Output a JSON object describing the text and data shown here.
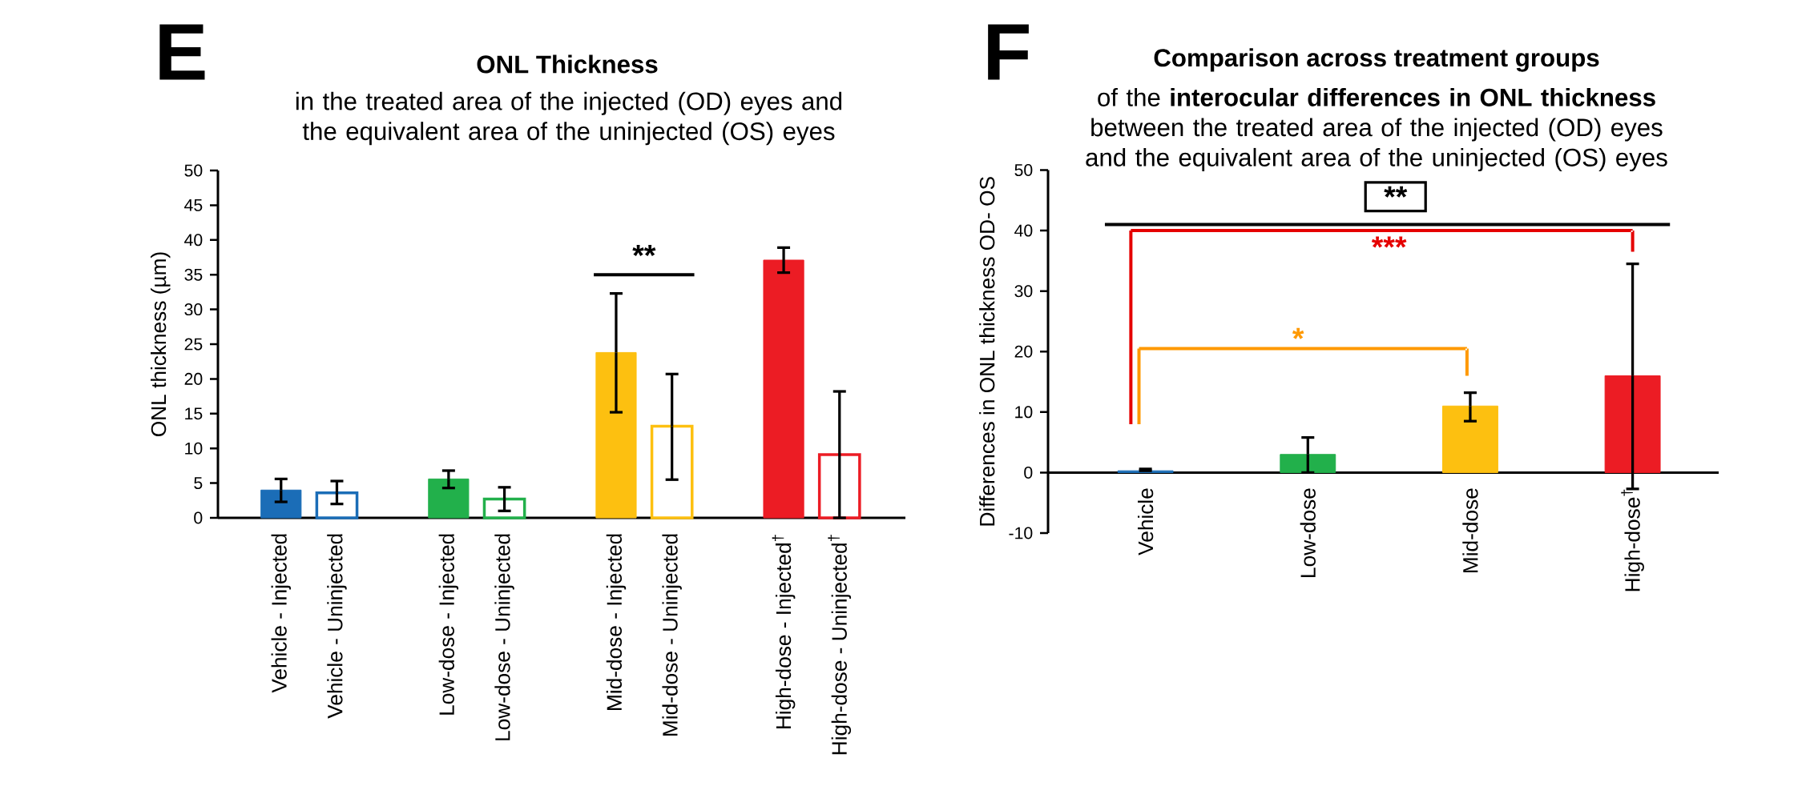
{
  "chart_data": [
    {
      "type": "bar",
      "title": "ONL Thickness",
      "subtitle": "in the treated area of the injected (OD) eyes and the equivalent area of the uninjected (OS) eyes",
      "ylabel": "ONL thickness  (µm)",
      "categories": [
        "Vehicle - Injected",
        "Vehicle - Uninjected",
        null,
        "Low-dose - Injected",
        "Low-dose - Uninjected",
        null,
        "Mid-dose - Injected",
        "Mid-dose - Uninjected",
        null,
        "High-dose - Injected$^{†}$",
        "High-dose - Uninjected$^{†}$"
      ],
      "series": [
        {
          "values": [
            4.0,
            null,
            null,
            5.6,
            null,
            null,
            23.8,
            null,
            null,
            37.1,
            null
          ],
          "colors": [
            "#1b6db7",
            null,
            null,
            "#22b04b",
            null,
            null,
            "#fdc010",
            null,
            null,
            "#ec1c24",
            null
          ],
          "errors": [
            [
              2.3,
              5.6
            ],
            null,
            null,
            [
              4.3,
              6.8
            ],
            null,
            null,
            [
              15.2,
              32.3
            ],
            null,
            null,
            [
              35.3,
              38.9
            ],
            null
          ]
        },
        {
          "values": [
            null,
            3.6,
            null,
            null,
            2.7,
            null,
            null,
            13.2,
            null,
            null,
            9.1
          ],
          "colors": [
            null,
            "#1b6db7",
            null,
            null,
            "#22b04b",
            null,
            null,
            "#fdc010",
            null,
            null,
            "#ec1c24"
          ],
          "errors": [
            null,
            [
              2.0,
              5.3
            ],
            null,
            null,
            [
              1.0,
              4.4
            ],
            null,
            null,
            [
              5.5,
              20.7
            ],
            null,
            null,
            [
              0,
              18.2
            ]
          ]
        }
      ],
      "ylim": [
        0,
        50
      ],
      "yticks": [
        0,
        5,
        10,
        15,
        20,
        25,
        30,
        35,
        40,
        45,
        50
      ],
      "annotations": [
        "E",
        "**"
      ]
    },
    {
      "type": "bar",
      "title": "Comparison across treatment groups",
      "subtitle": "of the **interocular differences in ONL thickness** between the treated area of the injected (OD) eyes and the equivalent area of the uninjected (OS) eyes",
      "ylabel": "Differences in ONL thickness OD- OS",
      "categories": [
        "Vehicle",
        "Low-dose",
        "Mid-dose",
        "High-dose$^{†}$"
      ],
      "series": [
        {
          "values": [
            0.3,
            3.0,
            11.0,
            16.0
          ],
          "colors": [
            "#1b6db7",
            "#22b04b",
            "#fdc010",
            "#ec1c24"
          ],
          "errors": [
            [
              0.3,
              0.6
            ],
            [
              0,
              5.8
            ],
            [
              8.5,
              13.2
            ],
            [
              -2.7,
              34.5
            ]
          ]
        }
      ],
      "ylim": [
        -10,
        50
      ],
      "yticks": [
        -10,
        0,
        10,
        20,
        30,
        40,
        50
      ],
      "annotations": [
        "F",
        "**",
        "***",
        "*"
      ]
    }
  ]
}
